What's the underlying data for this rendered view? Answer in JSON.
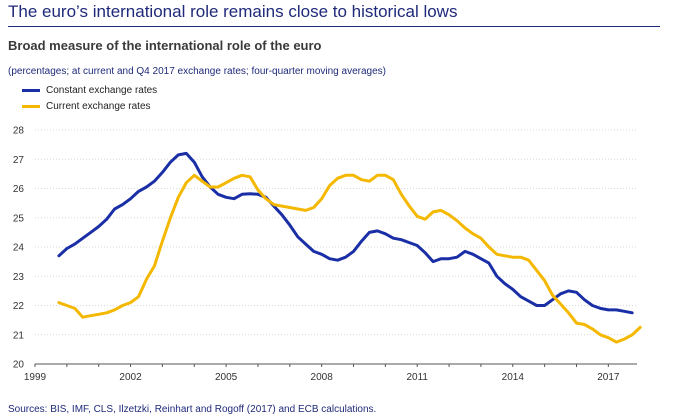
{
  "page_title": "The euro’s international role remains close to historical lows",
  "source_note": "Sources: BIS, IMF, CLS, Ilzetzki, Reinhart and Rogoff (2017) and ECB calculations.",
  "chart_data": {
    "type": "line",
    "title": "Broad measure of the international role of the euro",
    "subtitle": "(percentages; at current and Q4 2017 exchange rates; four-quarter moving averages)",
    "xlabel": "",
    "ylabel": "",
    "xlim": [
      1999,
      2017.9
    ],
    "ylim": [
      20,
      28
    ],
    "x_ticks": [
      "1999",
      "2002",
      "2005",
      "2008",
      "2011",
      "2014",
      "2017"
    ],
    "y_ticks": [
      "20",
      "21",
      "22",
      "23",
      "24",
      "25",
      "26",
      "27",
      "28"
    ],
    "grid": "horizontal",
    "legend_position": "top-left",
    "series": [
      {
        "name": "Constant exchange rates",
        "color": "#1a2ea6",
        "points": [
          [
            1999.75,
            23.7
          ],
          [
            2000.0,
            23.95
          ],
          [
            2000.25,
            24.1
          ],
          [
            2000.5,
            24.3
          ],
          [
            2000.75,
            24.5
          ],
          [
            2001.0,
            24.7
          ],
          [
            2001.25,
            24.95
          ],
          [
            2001.5,
            25.3
          ],
          [
            2001.75,
            25.45
          ],
          [
            2002.0,
            25.65
          ],
          [
            2002.25,
            25.9
          ],
          [
            2002.5,
            26.05
          ],
          [
            2002.75,
            26.25
          ],
          [
            2003.0,
            26.55
          ],
          [
            2003.25,
            26.9
          ],
          [
            2003.5,
            27.15
          ],
          [
            2003.75,
            27.2
          ],
          [
            2004.0,
            26.9
          ],
          [
            2004.25,
            26.4
          ],
          [
            2004.5,
            26.05
          ],
          [
            2004.75,
            25.8
          ],
          [
            2005.0,
            25.7
          ],
          [
            2005.25,
            25.65
          ],
          [
            2005.5,
            25.8
          ],
          [
            2005.75,
            25.82
          ],
          [
            2006.0,
            25.8
          ],
          [
            2006.25,
            25.7
          ],
          [
            2006.5,
            25.4
          ],
          [
            2006.75,
            25.1
          ],
          [
            2007.0,
            24.75
          ],
          [
            2007.25,
            24.35
          ],
          [
            2007.5,
            24.1
          ],
          [
            2007.75,
            23.85
          ],
          [
            2008.0,
            23.75
          ],
          [
            2008.25,
            23.6
          ],
          [
            2008.5,
            23.55
          ],
          [
            2008.75,
            23.65
          ],
          [
            2009.0,
            23.85
          ],
          [
            2009.25,
            24.2
          ],
          [
            2009.5,
            24.5
          ],
          [
            2009.75,
            24.55
          ],
          [
            2010.0,
            24.45
          ],
          [
            2010.25,
            24.3
          ],
          [
            2010.5,
            24.25
          ],
          [
            2010.75,
            24.15
          ],
          [
            2011.0,
            24.05
          ],
          [
            2011.25,
            23.8
          ],
          [
            2011.5,
            23.5
          ],
          [
            2011.75,
            23.6
          ],
          [
            2012.0,
            23.6
          ],
          [
            2012.25,
            23.65
          ],
          [
            2012.5,
            23.85
          ],
          [
            2012.75,
            23.75
          ],
          [
            2013.0,
            23.6
          ],
          [
            2013.25,
            23.45
          ],
          [
            2013.5,
            23.0
          ],
          [
            2013.75,
            22.75
          ],
          [
            2014.0,
            22.55
          ],
          [
            2014.25,
            22.3
          ],
          [
            2014.5,
            22.15
          ],
          [
            2014.75,
            22.0
          ],
          [
            2015.0,
            22.0
          ],
          [
            2015.25,
            22.2
          ],
          [
            2015.5,
            22.4
          ],
          [
            2015.75,
            22.5
          ],
          [
            2016.0,
            22.45
          ],
          [
            2016.25,
            22.2
          ],
          [
            2016.5,
            22.0
          ],
          [
            2016.75,
            21.9
          ],
          [
            2017.0,
            21.85
          ],
          [
            2017.25,
            21.85
          ],
          [
            2017.5,
            21.8
          ],
          [
            2017.75,
            21.75
          ]
        ]
      },
      {
        "name": "Current exchange rates",
        "color": "#f5b800",
        "points": [
          [
            1999.75,
            22.1
          ],
          [
            2000.0,
            22.0
          ],
          [
            2000.25,
            21.9
          ],
          [
            2000.5,
            21.6
          ],
          [
            2000.75,
            21.65
          ],
          [
            2001.0,
            21.7
          ],
          [
            2001.25,
            21.75
          ],
          [
            2001.5,
            21.85
          ],
          [
            2001.75,
            22.0
          ],
          [
            2002.0,
            22.1
          ],
          [
            2002.25,
            22.3
          ],
          [
            2002.5,
            22.9
          ],
          [
            2002.75,
            23.35
          ],
          [
            2003.0,
            24.2
          ],
          [
            2003.25,
            25.0
          ],
          [
            2003.5,
            25.7
          ],
          [
            2003.75,
            26.2
          ],
          [
            2004.0,
            26.45
          ],
          [
            2004.25,
            26.25
          ],
          [
            2004.5,
            26.05
          ],
          [
            2004.75,
            26.05
          ],
          [
            2005.0,
            26.2
          ],
          [
            2005.25,
            26.35
          ],
          [
            2005.5,
            26.45
          ],
          [
            2005.75,
            26.4
          ],
          [
            2006.0,
            25.95
          ],
          [
            2006.25,
            25.65
          ],
          [
            2006.5,
            25.45
          ],
          [
            2006.75,
            25.4
          ],
          [
            2007.0,
            25.35
          ],
          [
            2007.25,
            25.3
          ],
          [
            2007.5,
            25.25
          ],
          [
            2007.75,
            25.35
          ],
          [
            2008.0,
            25.65
          ],
          [
            2008.25,
            26.1
          ],
          [
            2008.5,
            26.35
          ],
          [
            2008.75,
            26.45
          ],
          [
            2009.0,
            26.45
          ],
          [
            2009.25,
            26.3
          ],
          [
            2009.5,
            26.25
          ],
          [
            2009.75,
            26.45
          ],
          [
            2010.0,
            26.45
          ],
          [
            2010.25,
            26.3
          ],
          [
            2010.5,
            25.8
          ],
          [
            2010.75,
            25.4
          ],
          [
            2011.0,
            25.05
          ],
          [
            2011.25,
            24.95
          ],
          [
            2011.5,
            25.2
          ],
          [
            2011.75,
            25.25
          ],
          [
            2012.0,
            25.1
          ],
          [
            2012.25,
            24.9
          ],
          [
            2012.5,
            24.65
          ],
          [
            2012.75,
            24.45
          ],
          [
            2013.0,
            24.3
          ],
          [
            2013.25,
            24.0
          ],
          [
            2013.5,
            23.75
          ],
          [
            2013.75,
            23.7
          ],
          [
            2014.0,
            23.65
          ],
          [
            2014.25,
            23.65
          ],
          [
            2014.5,
            23.55
          ],
          [
            2014.75,
            23.2
          ],
          [
            2015.0,
            22.85
          ],
          [
            2015.25,
            22.35
          ],
          [
            2015.5,
            22.05
          ],
          [
            2015.75,
            21.75
          ],
          [
            2016.0,
            21.4
          ],
          [
            2016.25,
            21.35
          ],
          [
            2016.5,
            21.2
          ],
          [
            2016.75,
            21.0
          ],
          [
            2017.0,
            20.9
          ],
          [
            2017.25,
            20.75
          ],
          [
            2017.5,
            20.85
          ],
          [
            2017.75,
            21.0
          ],
          [
            2018.0,
            21.25
          ]
        ]
      }
    ]
  }
}
